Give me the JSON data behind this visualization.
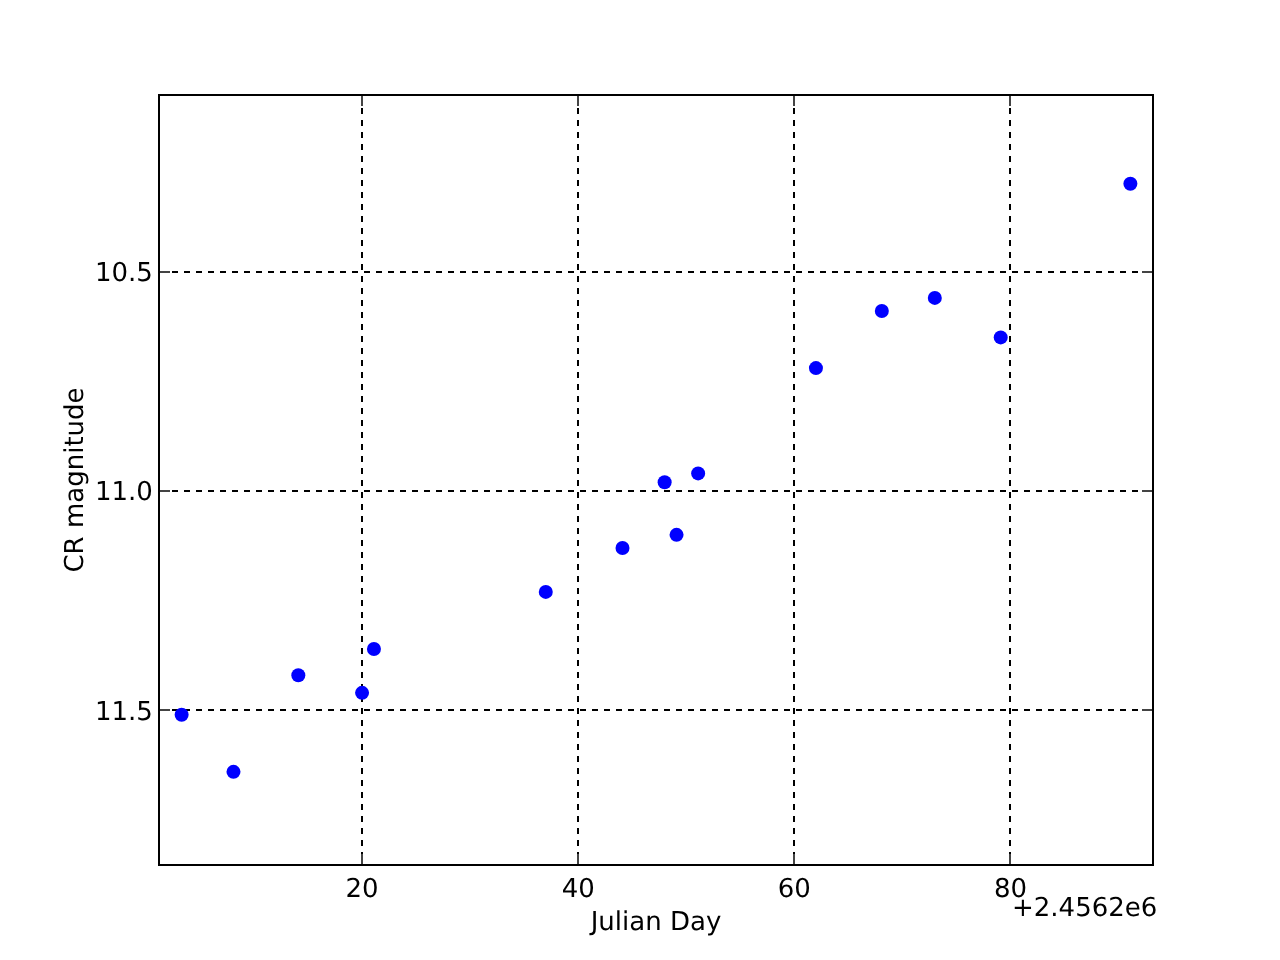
{
  "chart_data": {
    "type": "scatter",
    "xlabel": "Julian Day",
    "ylabel": "CR magnitude",
    "x": [
      3.3,
      8.1,
      14.1,
      20,
      21.1,
      37,
      44.1,
      48,
      49.1,
      51.1,
      62,
      68.1,
      73,
      79.1,
      91.1
    ],
    "series": [
      {
        "color": "#0000ff",
        "values": [
          11.51,
          11.64,
          11.42,
          11.46,
          11.36,
          11.23,
          11.13,
          10.98,
          11.1,
          10.96,
          10.72,
          10.59,
          10.56,
          10.65,
          10.3
        ]
      }
    ],
    "xlim": [
      1.3,
      93.1
    ],
    "xticks": [
      20,
      40,
      60,
      80
    ],
    "ylim": [
      11.85,
      10.1
    ],
    "yticks": [
      10.5,
      {
        "value": 11,
        "label": "11.0"
      },
      11.5
    ],
    "grid": true,
    "marker": "circle",
    "annotations": [
      "+2.4562e6"
    ]
  }
}
